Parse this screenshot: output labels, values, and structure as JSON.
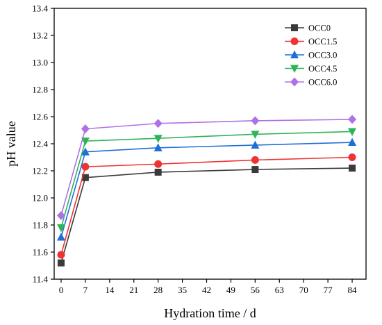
{
  "chart_data": {
    "type": "line",
    "xlabel": "Hydration time / d",
    "ylabel": "pH value",
    "xlim": [
      -2,
      88
    ],
    "ylim": [
      11.4,
      13.4
    ],
    "x_ticks": [
      0,
      7,
      14,
      21,
      28,
      35,
      42,
      49,
      56,
      63,
      70,
      77,
      84
    ],
    "y_ticks": [
      11.4,
      11.6,
      11.8,
      12.0,
      12.2,
      12.4,
      12.6,
      12.8,
      13.0,
      13.2,
      13.4
    ],
    "grid": false,
    "legend_position": "top-right",
    "x": [
      0,
      7,
      28,
      56,
      84
    ],
    "series": [
      {
        "name": "OCC0",
        "color": "#3a3a3a",
        "marker": "square",
        "values": [
          11.52,
          12.15,
          12.19,
          12.21,
          12.22
        ]
      },
      {
        "name": "OCC1.5",
        "color": "#ee3333",
        "marker": "circle",
        "values": [
          11.58,
          12.23,
          12.25,
          12.28,
          12.3
        ]
      },
      {
        "name": "OCC3.0",
        "color": "#1f6fd6",
        "marker": "triangle-up",
        "values": [
          11.71,
          12.34,
          12.37,
          12.39,
          12.41
        ]
      },
      {
        "name": "OCC4.5",
        "color": "#2fb35a",
        "marker": "triangle-down",
        "values": [
          11.78,
          12.42,
          12.44,
          12.47,
          12.49
        ]
      },
      {
        "name": "OCC6.0",
        "color": "#b070e6",
        "marker": "diamond",
        "values": [
          11.87,
          12.51,
          12.55,
          12.57,
          12.58
        ]
      }
    ]
  }
}
